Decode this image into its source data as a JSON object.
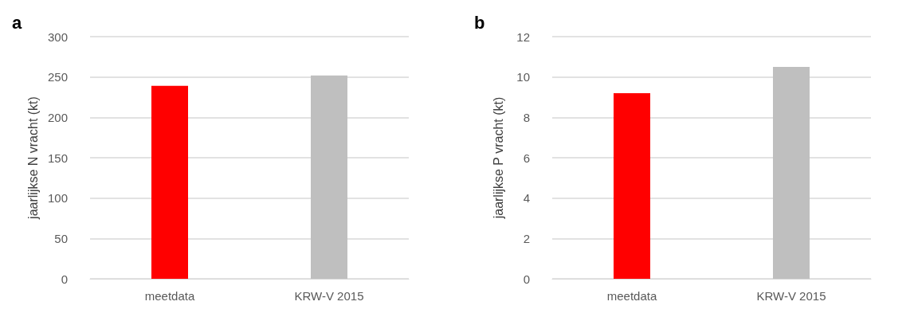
{
  "chart_data": [
    {
      "type": "bar",
      "title": "a",
      "ylabel": "jaarlijkse N vracht (kt)",
      "categories": [
        "meetdata",
        "KRW-V 2015"
      ],
      "values": [
        239,
        252
      ],
      "colors": [
        "#ff0000",
        "#bfbfbf"
      ],
      "ylim": [
        0,
        300
      ],
      "yticks": [
        0,
        50,
        100,
        150,
        200,
        250,
        300
      ],
      "grid": "y"
    },
    {
      "type": "bar",
      "title": "b",
      "ylabel": "jaarlijkse P vracht (kt)",
      "categories": [
        "meetdata",
        "KRW-V 2015"
      ],
      "values": [
        9.2,
        10.5
      ],
      "colors": [
        "#ff0000",
        "#bfbfbf"
      ],
      "ylim": [
        0,
        12
      ],
      "yticks": [
        0,
        2,
        4,
        6,
        8,
        10,
        12
      ],
      "grid": "y"
    }
  ]
}
